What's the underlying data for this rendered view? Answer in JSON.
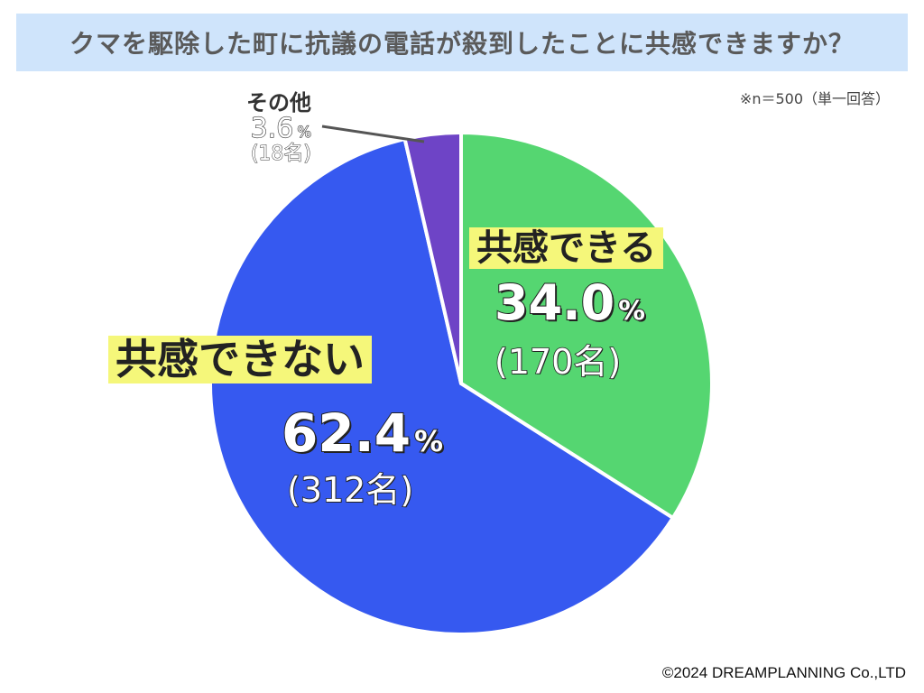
{
  "title": "クマを駆除した町に抗議の電話が殺到したことに共感できますか？",
  "note": "※n＝500（単一回答）",
  "copyright": "©2024 DREAMPLANNING Co.,LTD",
  "colors": {
    "agree": "#55d671",
    "disagree": "#3659f0",
    "other": "#6e44c6",
    "highlight": "#f5f77a",
    "title_bg": "#cfe4fb"
  },
  "chart_data": {
    "type": "pie",
    "title": "クマを駆除した町に抗議の電話が殺到したことに共感できますか？",
    "n": 500,
    "slices": [
      {
        "label": "共感できる",
        "value": 34.0,
        "count": 170,
        "pct_text": "34.0",
        "count_text": "(170名)",
        "color": "#55d671"
      },
      {
        "label": "共感できない",
        "value": 62.4,
        "count": 312,
        "pct_text": "62.4",
        "count_text": "(312名)",
        "color": "#3659f0"
      },
      {
        "label": "その他",
        "value": 3.6,
        "count": 18,
        "pct_text": "3.6",
        "count_text": "(18名)",
        "color": "#6e44c6"
      }
    ],
    "unit": "%",
    "start_angle": "12 o'clock",
    "direction": "clockwise"
  }
}
